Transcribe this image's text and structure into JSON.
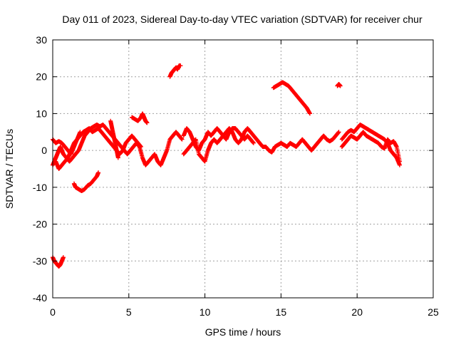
{
  "chart_data": {
    "type": "scatter",
    "title": "Day 011 of 2023, Sidereal Day-to-day VTEC variation (SDTVAR) for receiver chur",
    "xlabel": "GPS time / hours",
    "ylabel": "SDTVAR / TECUs",
    "xlim": [
      0,
      25
    ],
    "ylim": [
      -40,
      30
    ],
    "xticks": [
      0,
      5,
      10,
      15,
      20,
      25
    ],
    "yticks": [
      -40,
      -30,
      -20,
      -10,
      0,
      10,
      20,
      30
    ],
    "grid": true,
    "marker": "+",
    "color": "#ff0000",
    "series": [
      {
        "name": "sdtvar",
        "segments": [
          [
            [
              0.0,
              -4
            ],
            [
              0.1,
              -3
            ],
            [
              0.2,
              -2
            ],
            [
              0.3,
              -1
            ],
            [
              0.4,
              0
            ],
            [
              0.5,
              1
            ],
            [
              0.6,
              0
            ],
            [
              0.7,
              -1
            ],
            [
              0.9,
              -2
            ],
            [
              1.1,
              -3
            ],
            [
              1.3,
              -2
            ],
            [
              1.5,
              -1
            ],
            [
              1.7,
              0
            ],
            [
              1.9,
              2
            ],
            [
              2.1,
              4
            ],
            [
              2.3,
              5
            ],
            [
              2.5,
              6
            ],
            [
              2.7,
              6.5
            ],
            [
              2.9,
              7
            ],
            [
              3.1,
              6.5
            ],
            [
              3.3,
              7
            ],
            [
              3.5,
              6
            ],
            [
              3.7,
              5
            ],
            [
              3.9,
              4
            ],
            [
              4.1,
              3
            ],
            [
              4.3,
              2
            ],
            [
              4.5,
              1
            ],
            [
              4.7,
              0
            ],
            [
              4.9,
              -1
            ],
            [
              5.1,
              0
            ],
            [
              5.3,
              1
            ],
            [
              5.5,
              2
            ],
            [
              5.7,
              1
            ],
            [
              5.9,
              -2
            ],
            [
              6.1,
              -4
            ],
            [
              6.3,
              -3
            ],
            [
              6.5,
              -2
            ],
            [
              6.7,
              -1
            ],
            [
              6.9,
              -3
            ],
            [
              7.1,
              -4
            ],
            [
              7.3,
              -2
            ],
            [
              7.5,
              0
            ],
            [
              7.7,
              3
            ],
            [
              7.9,
              4
            ],
            [
              8.1,
              5
            ],
            [
              8.3,
              4
            ],
            [
              8.5,
              3
            ]
          ],
          [
            [
              0.0,
              3
            ],
            [
              0.2,
              2
            ],
            [
              0.4,
              2.5
            ],
            [
              0.6,
              2
            ],
            [
              0.8,
              1
            ],
            [
              1.0,
              0
            ],
            [
              1.2,
              -1
            ],
            [
              1.4,
              1
            ],
            [
              1.6,
              3
            ],
            [
              1.8,
              5
            ]
          ],
          [
            [
              0.2,
              -3
            ],
            [
              0.4,
              -5
            ],
            [
              0.6,
              -4
            ],
            [
              0.8,
              -3
            ],
            [
              1.0,
              -2
            ],
            [
              1.2,
              0
            ],
            [
              1.4,
              2
            ],
            [
              1.6,
              3
            ],
            [
              1.8,
              4
            ],
            [
              2.0,
              5
            ],
            [
              2.2,
              5.5
            ],
            [
              2.4,
              6
            ],
            [
              2.6,
              5
            ],
            [
              2.8,
              5.5
            ],
            [
              3.0,
              6
            ],
            [
              3.2,
              5
            ],
            [
              3.4,
              4
            ],
            [
              3.6,
              3
            ],
            [
              3.8,
              2
            ],
            [
              4.0,
              1
            ],
            [
              4.2,
              0
            ],
            [
              4.4,
              -1
            ],
            [
              4.6,
              0
            ],
            [
              4.8,
              2
            ],
            [
              5.0,
              3
            ],
            [
              5.2,
              4
            ],
            [
              5.4,
              3
            ],
            [
              5.6,
              2
            ],
            [
              5.8,
              1
            ]
          ],
          [
            [
              3.8,
              8
            ],
            [
              3.9,
              6
            ],
            [
              4.0,
              4
            ],
            [
              4.1,
              2
            ],
            [
              4.2,
              0
            ],
            [
              4.3,
              -2
            ]
          ],
          [
            [
              1.4,
              -9
            ],
            [
              1.5,
              -10
            ],
            [
              1.7,
              -10.5
            ],
            [
              1.9,
              -11
            ],
            [
              2.1,
              -10.5
            ],
            [
              2.3,
              -9.5
            ],
            [
              2.5,
              -9
            ],
            [
              2.7,
              -8
            ],
            [
              2.9,
              -7
            ],
            [
              3.0,
              -6
            ]
          ],
          [
            [
              0.0,
              -29
            ],
            [
              0.1,
              -30
            ],
            [
              0.2,
              -30.5
            ],
            [
              0.3,
              -31
            ],
            [
              0.4,
              -31.5
            ],
            [
              0.5,
              -31
            ],
            [
              0.6,
              -30
            ],
            [
              0.7,
              -29
            ]
          ],
          [
            [
              5.2,
              9
            ],
            [
              5.4,
              8.5
            ],
            [
              5.6,
              8
            ],
            [
              5.8,
              9
            ],
            [
              5.9,
              10
            ],
            [
              6.0,
              9
            ],
            [
              6.1,
              8
            ],
            [
              6.2,
              7.5
            ]
          ],
          [
            [
              7.7,
              20
            ],
            [
              7.8,
              21
            ],
            [
              7.9,
              21.5
            ],
            [
              8.0,
              22
            ],
            [
              8.1,
              22.5
            ],
            [
              8.2,
              22
            ],
            [
              8.3,
              23
            ],
            [
              8.4,
              23
            ]
          ],
          [
            [
              8.6,
              4
            ],
            [
              8.8,
              6
            ],
            [
              9.0,
              5
            ],
            [
              9.2,
              3
            ],
            [
              9.4,
              1
            ],
            [
              9.6,
              0
            ],
            [
              9.8,
              2
            ],
            [
              10.0,
              3
            ],
            [
              10.2,
              5
            ],
            [
              10.4,
              4
            ],
            [
              10.6,
              5
            ],
            [
              10.8,
              6
            ],
            [
              11.0,
              5
            ],
            [
              11.2,
              4
            ],
            [
              11.4,
              5
            ],
            [
              11.6,
              6
            ],
            [
              11.8,
              5
            ],
            [
              12.0,
              3
            ],
            [
              12.2,
              2
            ],
            [
              12.4,
              3
            ],
            [
              12.6,
              5
            ],
            [
              12.8,
              6
            ],
            [
              13.0,
              5
            ],
            [
              13.2,
              4
            ],
            [
              13.4,
              3
            ],
            [
              13.6,
              2
            ],
            [
              13.8,
              1
            ],
            [
              14.0,
              1
            ],
            [
              14.2,
              0
            ],
            [
              14.4,
              -0.5
            ],
            [
              14.6,
              1
            ],
            [
              14.8,
              1.5
            ],
            [
              15.0,
              2
            ],
            [
              15.2,
              1.5
            ],
            [
              15.4,
              1
            ],
            [
              15.6,
              2
            ],
            [
              15.8,
              1.5
            ],
            [
              16.0,
              1
            ],
            [
              16.2,
              2
            ],
            [
              16.4,
              3
            ],
            [
              16.6,
              2
            ],
            [
              16.8,
              1
            ],
            [
              17.0,
              0
            ],
            [
              17.2,
              1
            ],
            [
              17.4,
              2
            ],
            [
              17.6,
              3
            ],
            [
              17.8,
              4
            ],
            [
              18.0,
              3
            ],
            [
              18.2,
              2.5
            ],
            [
              18.4,
              3
            ],
            [
              18.6,
              4
            ],
            [
              18.8,
              5
            ]
          ],
          [
            [
              8.6,
              -1
            ],
            [
              8.8,
              0
            ],
            [
              9.0,
              1
            ],
            [
              9.2,
              2
            ],
            [
              9.4,
              3
            ],
            [
              9.6,
              -1
            ],
            [
              9.8,
              -2
            ],
            [
              10.0,
              -3
            ],
            [
              10.2,
              0
            ],
            [
              10.4,
              2
            ],
            [
              10.6,
              3
            ],
            [
              10.8,
              2
            ],
            [
              11.0,
              3
            ],
            [
              11.2,
              4
            ],
            [
              11.4,
              3
            ],
            [
              11.6,
              5
            ],
            [
              11.8,
              6
            ],
            [
              12.0,
              6
            ],
            [
              12.2,
              5
            ],
            [
              12.4,
              4
            ],
            [
              12.6,
              3
            ],
            [
              12.8,
              4
            ],
            [
              13.0,
              3
            ],
            [
              13.2,
              2
            ]
          ],
          [
            [
              14.5,
              17
            ],
            [
              14.7,
              17.5
            ],
            [
              14.9,
              18
            ],
            [
              15.1,
              18.5
            ],
            [
              15.3,
              18
            ],
            [
              15.5,
              17.5
            ],
            [
              15.7,
              16.5
            ],
            [
              15.9,
              15.5
            ],
            [
              16.1,
              14.5
            ],
            [
              16.3,
              13.5
            ],
            [
              16.5,
              12.5
            ],
            [
              16.7,
              11.5
            ],
            [
              16.9,
              10
            ]
          ],
          [
            [
              18.7,
              17.5
            ],
            [
              18.8,
              18
            ],
            [
              18.9,
              17.5
            ]
          ],
          [
            [
              19.0,
              3
            ],
            [
              19.2,
              4
            ],
            [
              19.4,
              5
            ],
            [
              19.6,
              5.5
            ],
            [
              19.8,
              5
            ],
            [
              20.0,
              6
            ],
            [
              20.2,
              7
            ],
            [
              20.4,
              6.5
            ],
            [
              20.6,
              6
            ],
            [
              20.8,
              5.5
            ],
            [
              21.0,
              5
            ],
            [
              21.2,
              4.5
            ],
            [
              21.4,
              4
            ],
            [
              21.6,
              3.5
            ],
            [
              21.8,
              3
            ],
            [
              22.0,
              2
            ],
            [
              22.2,
              0
            ],
            [
              22.4,
              -1
            ],
            [
              22.6,
              -2
            ],
            [
              22.8,
              -4
            ]
          ],
          [
            [
              19.0,
              1
            ],
            [
              19.2,
              2
            ],
            [
              19.4,
              3
            ],
            [
              19.6,
              4
            ],
            [
              19.8,
              3.5
            ],
            [
              20.0,
              3
            ],
            [
              20.2,
              4
            ],
            [
              20.4,
              5
            ],
            [
              20.6,
              4
            ],
            [
              20.8,
              3.5
            ],
            [
              21.0,
              3
            ],
            [
              21.2,
              2.5
            ],
            [
              21.4,
              2
            ],
            [
              21.6,
              1
            ],
            [
              21.8,
              0.5
            ],
            [
              22.0,
              3
            ],
            [
              22.2,
              2
            ],
            [
              22.4,
              2.5
            ],
            [
              22.6,
              1
            ],
            [
              22.8,
              -3
            ]
          ]
        ]
      }
    ]
  }
}
